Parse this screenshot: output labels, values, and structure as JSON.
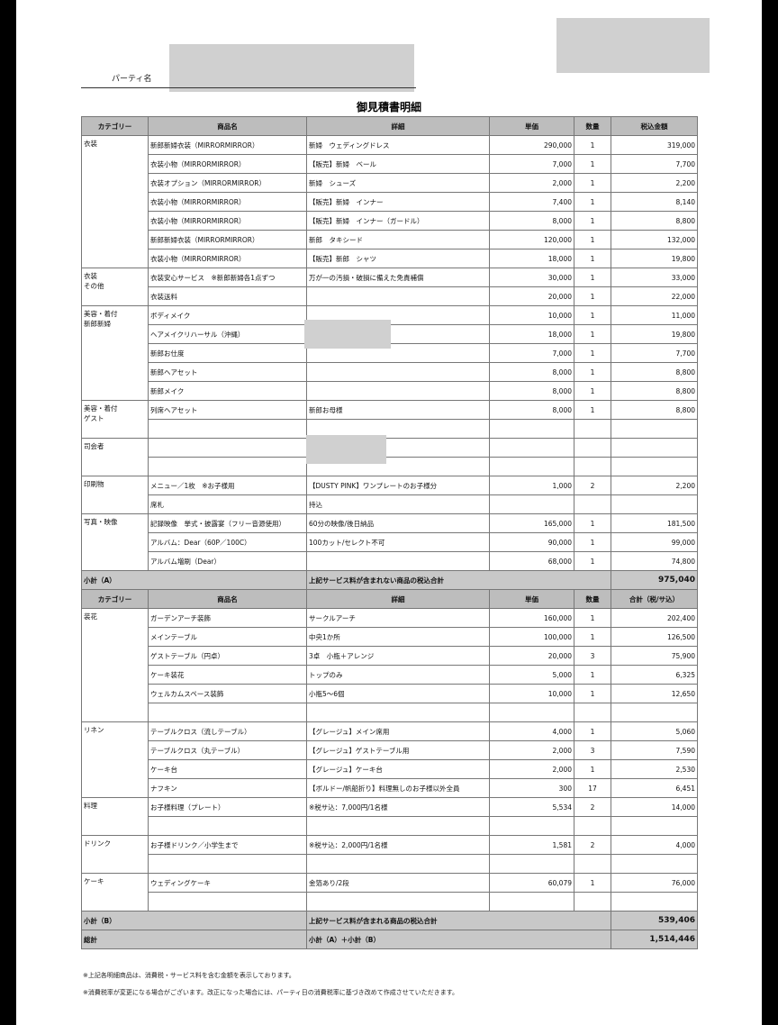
{
  "header": {
    "party_label": "パーティ名",
    "title": "御見積書明細"
  },
  "sections": [
    {
      "columns": [
        "カテゴリー",
        "商品名",
        "詳細",
        "単価",
        "数量",
        "税込金額"
      ],
      "groups": [
        {
          "category": [
            "衣装"
          ],
          "rows": [
            [
              "新郎新婦衣装（MIRRORMIRROR）",
              "新婦　ウェディングドレス",
              "290,000",
              "1",
              "319,000"
            ],
            [
              "衣装小物（MIRRORMIRROR）",
              "【販売】新婦　ベール",
              "7,000",
              "1",
              "7,700"
            ],
            [
              "衣装オプション（MIRRORMIRROR）",
              "新婦　シューズ",
              "2,000",
              "1",
              "2,200"
            ],
            [
              "衣装小物（MIRRORMIRROR）",
              "【販売】新婦　インナー",
              "7,400",
              "1",
              "8,140"
            ],
            [
              "衣装小物（MIRRORMIRROR）",
              "【販売】新婦　インナー（ガードル）",
              "8,000",
              "1",
              "8,800"
            ],
            [
              "新郎新婦衣装（MIRRORMIRROR）",
              "新郎　タキシード",
              "120,000",
              "1",
              "132,000"
            ],
            [
              "衣装小物（MIRRORMIRROR）",
              "【販売】新郎　シャツ",
              "18,000",
              "1",
              "19,800"
            ]
          ]
        },
        {
          "category": [
            "衣装",
            "その他"
          ],
          "rows": [
            [
              "衣装安心サービス　※新郎新婦各1点ずつ",
              "万が一の汚損・破損に備えた免責補償",
              "30,000",
              "1",
              "33,000"
            ],
            [
              "衣装送料",
              null,
              "20,000",
              "1",
              "22,000"
            ]
          ]
        },
        {
          "category": [
            "美容・着付",
            "新郎新婦"
          ],
          "rows": [
            [
              "ボディメイク",
              null,
              "10,000",
              "1",
              "11,000"
            ],
            [
              "ヘアメイクリハーサル（沖縄）",
              null,
              "18,000",
              "1",
              "19,800"
            ],
            [
              "新郎お仕度",
              null,
              "7,000",
              "1",
              "7,700"
            ],
            [
              "新郎ヘアセット",
              null,
              "8,000",
              "1",
              "8,800"
            ],
            [
              "新郎メイク",
              null,
              "8,000",
              "1",
              "8,800"
            ]
          ]
        },
        {
          "category": [
            "美容・着付",
            "ゲスト"
          ],
          "rows": [
            [
              "列席ヘアセット",
              "新郎お母様",
              "8,000",
              "1",
              "8,800"
            ],
            [
              null,
              null,
              null,
              null,
              null
            ]
          ]
        },
        {
          "category": [
            "司会者"
          ],
          "rows": [
            [
              null,
              null,
              null,
              null,
              null
            ],
            [
              null,
              null,
              null,
              null,
              null
            ]
          ]
        },
        {
          "category": [
            "印刷物"
          ],
          "rows": [
            [
              "メニュー／1枚　※お子様用",
              "【DUSTY PINK】ワンプレートのお子様分",
              "1,000",
              "2",
              "2,200"
            ],
            [
              "席札",
              "持込",
              null,
              null,
              null
            ]
          ]
        },
        {
          "category": [
            "写真・映像"
          ],
          "rows": [
            [
              "記録映像　挙式・披露宴（フリー音源使用）",
              "60分の映像/後日納品",
              "165,000",
              "1",
              "181,500"
            ],
            [
              "アルバム：Dear（60P／100C）",
              "100カット/セレクト不可",
              "90,000",
              "1",
              "99,000"
            ],
            [
              "アルバム増刷（Dear）",
              null,
              "68,000",
              "1",
              "74,800"
            ]
          ]
        }
      ],
      "subtotal": {
        "label": "小計（A）",
        "note": "上記サービス料が含まれない商品の税込合計",
        "amount": "975,040"
      }
    },
    {
      "columns": [
        "カテゴリー",
        "商品名",
        "詳細",
        "単価",
        "数量",
        "合計（税/サ込）"
      ],
      "groups": [
        {
          "category": [
            "装花"
          ],
          "rows": [
            [
              "ガーデンアーチ装飾",
              "サークルアーチ",
              "160,000",
              "1",
              "202,400"
            ],
            [
              "メインテーブル",
              "中央1か所",
              "100,000",
              "1",
              "126,500"
            ],
            [
              "ゲストテーブル（円卓）",
              "3卓　小瓶＋アレンジ",
              "20,000",
              "3",
              "75,900"
            ],
            [
              "ケーキ装花",
              "トップのみ",
              "5,000",
              "1",
              "6,325"
            ],
            [
              "ウェルカムスペース装飾",
              "小瓶5～6個",
              "10,000",
              "1",
              "12,650"
            ],
            [
              null,
              null,
              null,
              null,
              null
            ]
          ]
        },
        {
          "category": [
            "リネン"
          ],
          "rows": [
            [
              "テーブルクロス（流しテーブル）",
              "【グレージュ】メイン席用",
              "4,000",
              "1",
              "5,060"
            ],
            [
              "テーブルクロス（丸テーブル）",
              "【グレージュ】ゲストテーブル用",
              "2,000",
              "3",
              "7,590"
            ],
            [
              "ケーキ台",
              "【グレージュ】ケーキ台",
              "2,000",
              "1",
              "2,530"
            ],
            [
              "ナフキン",
              "【ボルドー/帆船折り】料理無しのお子様以外全員",
              "300",
              "17",
              "6,451"
            ]
          ]
        },
        {
          "category": [
            "料理"
          ],
          "rows": [
            [
              "お子様料理（プレート）",
              "※税サ込：7,000円/1名様",
              "5,534",
              "2",
              "14,000"
            ],
            [
              null,
              null,
              null,
              null,
              null
            ]
          ]
        },
        {
          "category": [
            "ドリンク"
          ],
          "rows": [
            [
              "お子様ドリンク／小学生まで",
              "※税サ込：2,000円/1名様",
              "1,581",
              "2",
              "4,000"
            ],
            [
              null,
              null,
              null,
              null,
              null
            ]
          ]
        },
        {
          "category": [
            "ケーキ"
          ],
          "rows": [
            [
              "ウェディングケーキ",
              "金箔あり/2段",
              "60,079",
              "1",
              "76,000"
            ],
            [
              null,
              null,
              null,
              null,
              null
            ]
          ]
        }
      ],
      "subtotal": {
        "label": "小計（B）",
        "note": "上記サービス料が含まれる商品の税込合計",
        "amount": "539,406"
      }
    }
  ],
  "total": {
    "label": "総計",
    "note": "小計（A）＋小計（B）",
    "amount": "1,514,446"
  },
  "notes": [
    "※上記各明細商品は、消費税・サービス料を含む金額を表示しております。",
    "※消費税率が変更になる場合がございます。改正になった場合には、パーティ日の消費税率に基づき改めて作成させていただきます。"
  ]
}
